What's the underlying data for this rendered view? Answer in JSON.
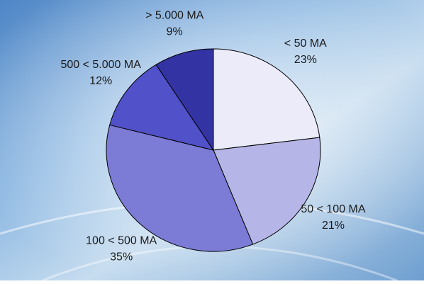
{
  "chart_data": {
    "type": "pie",
    "categories": [
      "< 50 MA",
      "50 < 100 MA",
      "100 < 500 MA",
      "500 < 5.000 MA",
      "> 5.000 MA"
    ],
    "values": [
      23,
      21,
      35,
      12,
      9
    ],
    "value_labels": [
      "23%",
      "21%",
      "35%",
      "12%",
      "9%"
    ],
    "colors": [
      "#ebebf9",
      "#b5b5e7",
      "#7c7cd6",
      "#5151c9",
      "#3333a3"
    ]
  }
}
